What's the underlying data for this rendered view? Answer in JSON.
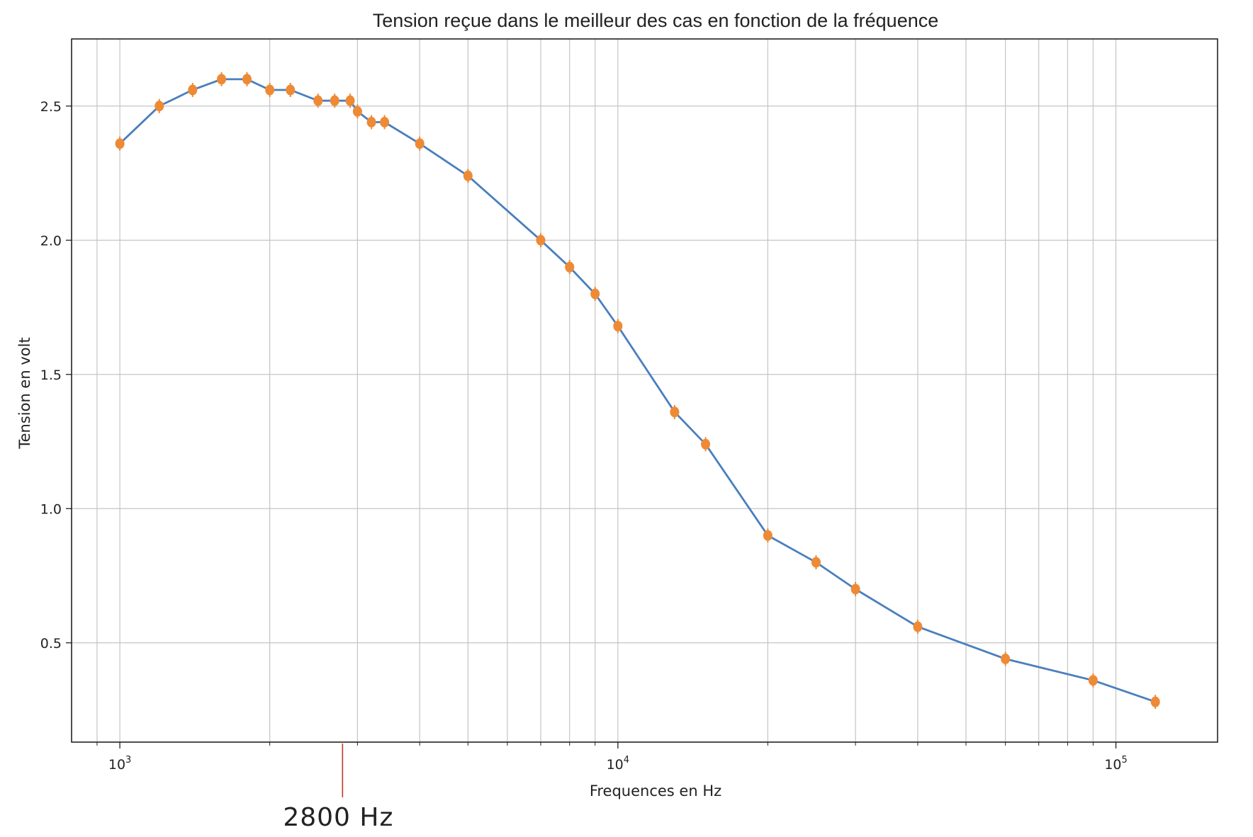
{
  "chart_data": {
    "type": "line",
    "title": "Tension reçue dans le meilleur des cas en fonction de la fréquence",
    "xlabel": "Frequences en Hz",
    "ylabel": "Tension en volt",
    "xscale": "log",
    "xlim": [
      800,
      160000
    ],
    "ylim": [
      0.13,
      2.75
    ],
    "grid": true,
    "x_ticks_major": [
      {
        "value": 1000,
        "base": "10",
        "exp": "3"
      },
      {
        "value": 10000,
        "base": "10",
        "exp": "4"
      },
      {
        "value": 100000,
        "base": "10",
        "exp": "5"
      }
    ],
    "x_ticks_minor": [
      900,
      2000,
      3000,
      4000,
      5000,
      6000,
      7000,
      8000,
      9000,
      20000,
      30000,
      40000,
      50000,
      60000,
      70000,
      80000,
      90000
    ],
    "y_ticks": [
      {
        "value": 0.5,
        "label": "0.5"
      },
      {
        "value": 1.0,
        "label": "1.0"
      },
      {
        "value": 1.5,
        "label": "1.5"
      },
      {
        "value": 2.0,
        "label": "2.0"
      },
      {
        "value": 2.5,
        "label": "2.5"
      }
    ],
    "series": [
      {
        "line_color": "#4a7fbd",
        "marker_color": "#ee8a35",
        "x": [
          1000,
          1200,
          1400,
          1600,
          1800,
          2000,
          2200,
          2500,
          2700,
          2900,
          3000,
          3200,
          3400,
          4000,
          5000,
          7000,
          8000,
          9000,
          10000,
          13000,
          15000,
          20000,
          25000,
          30000,
          40000,
          60000,
          90000,
          120000
        ],
        "y": [
          2.36,
          2.5,
          2.56,
          2.6,
          2.6,
          2.56,
          2.56,
          2.52,
          2.52,
          2.52,
          2.48,
          2.44,
          2.44,
          2.36,
          2.24,
          2.0,
          1.9,
          1.8,
          1.68,
          1.36,
          1.24,
          0.9,
          0.8,
          0.7,
          0.56,
          0.44,
          0.36,
          0.28
        ]
      }
    ],
    "annotations": [
      {
        "text": "2800 Hz",
        "x": 2800,
        "color": "#c0392b"
      }
    ]
  }
}
